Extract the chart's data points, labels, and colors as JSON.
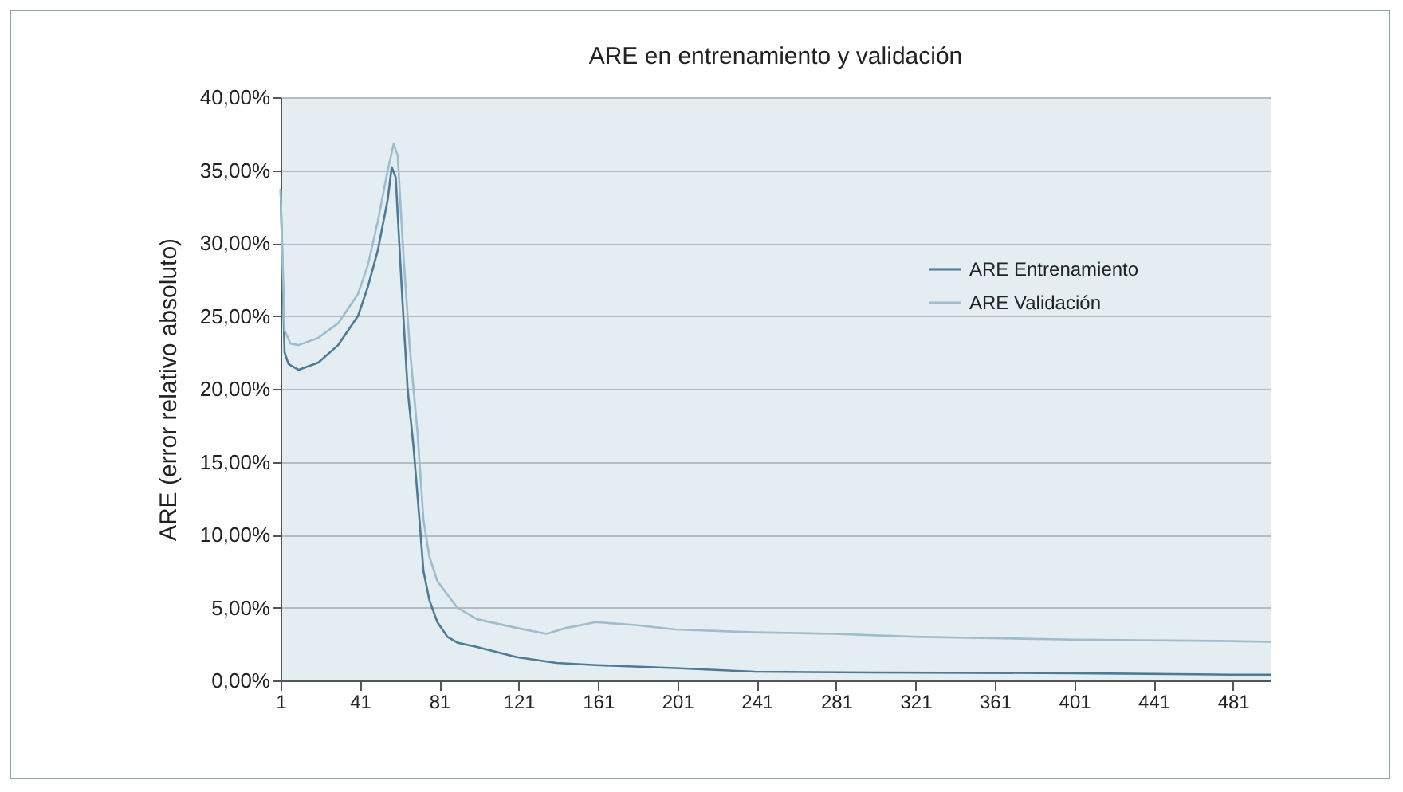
{
  "chart_data": {
    "type": "line",
    "title": "ARE en entrenamiento y validación",
    "ylabel": "ARE (error relativo absoluto)",
    "x": [
      1,
      3,
      5,
      10,
      20,
      30,
      40,
      45,
      50,
      55,
      57,
      59,
      62,
      65,
      68,
      71,
      73,
      76,
      80,
      85,
      90,
      100,
      120,
      140,
      160,
      200,
      240,
      300,
      400,
      480,
      500
    ],
    "series": [
      {
        "name": "ARE Entrenamiento",
        "color": "#4e7a96",
        "values": [
          33.7,
          22.5,
          21.7,
          21.3,
          21.8,
          23,
          25,
          27,
          29.5,
          33,
          35.2,
          34.5,
          27,
          20,
          16,
          11,
          7.5,
          5.5,
          4,
          3,
          2.6,
          2.3,
          1.6,
          1.2,
          1.05,
          0.85,
          0.6,
          0.55,
          0.5,
          0.4,
          0.4
        ]
      },
      {
        "name": "ARE Validación",
        "color": "#9ebccc",
        "x": [
          1,
          3,
          6,
          10,
          20,
          30,
          40,
          45,
          50,
          55,
          58,
          60,
          63,
          66,
          70,
          73,
          76,
          80,
          90,
          100,
          120,
          135,
          145,
          160,
          180,
          200,
          240,
          280,
          320,
          360,
          400,
          480,
          500
        ],
        "values": [
          33.7,
          24,
          23.1,
          23,
          23.5,
          24.5,
          26.5,
          28.5,
          31.5,
          35,
          36.8,
          36,
          29,
          23,
          17,
          11,
          8.5,
          6.8,
          5,
          4.2,
          3.6,
          3.2,
          3.6,
          4,
          3.8,
          3.5,
          3.3,
          3.2,
          3,
          2.9,
          2.8,
          2.7,
          2.65
        ]
      }
    ],
    "xlim": [
      1,
      500
    ],
    "xticks": [
      1,
      41,
      81,
      121,
      161,
      201,
      241,
      281,
      321,
      361,
      401,
      441,
      481
    ],
    "ylim": [
      0,
      40
    ],
    "yticks": [
      {
        "value": 0,
        "label": "0,00%"
      },
      {
        "value": 5,
        "label": "5,00%"
      },
      {
        "value": 10,
        "label": "10,00%"
      },
      {
        "value": 15,
        "label": "15,00%"
      },
      {
        "value": 20,
        "label": "20,00%"
      },
      {
        "value": 25,
        "label": "25,00%"
      },
      {
        "value": 30,
        "label": "30,00%"
      },
      {
        "value": 35,
        "label": "35,00%"
      },
      {
        "value": 40,
        "label": "40,00%"
      }
    ],
    "grid": "y",
    "legend": "right",
    "line_style": "solid"
  }
}
